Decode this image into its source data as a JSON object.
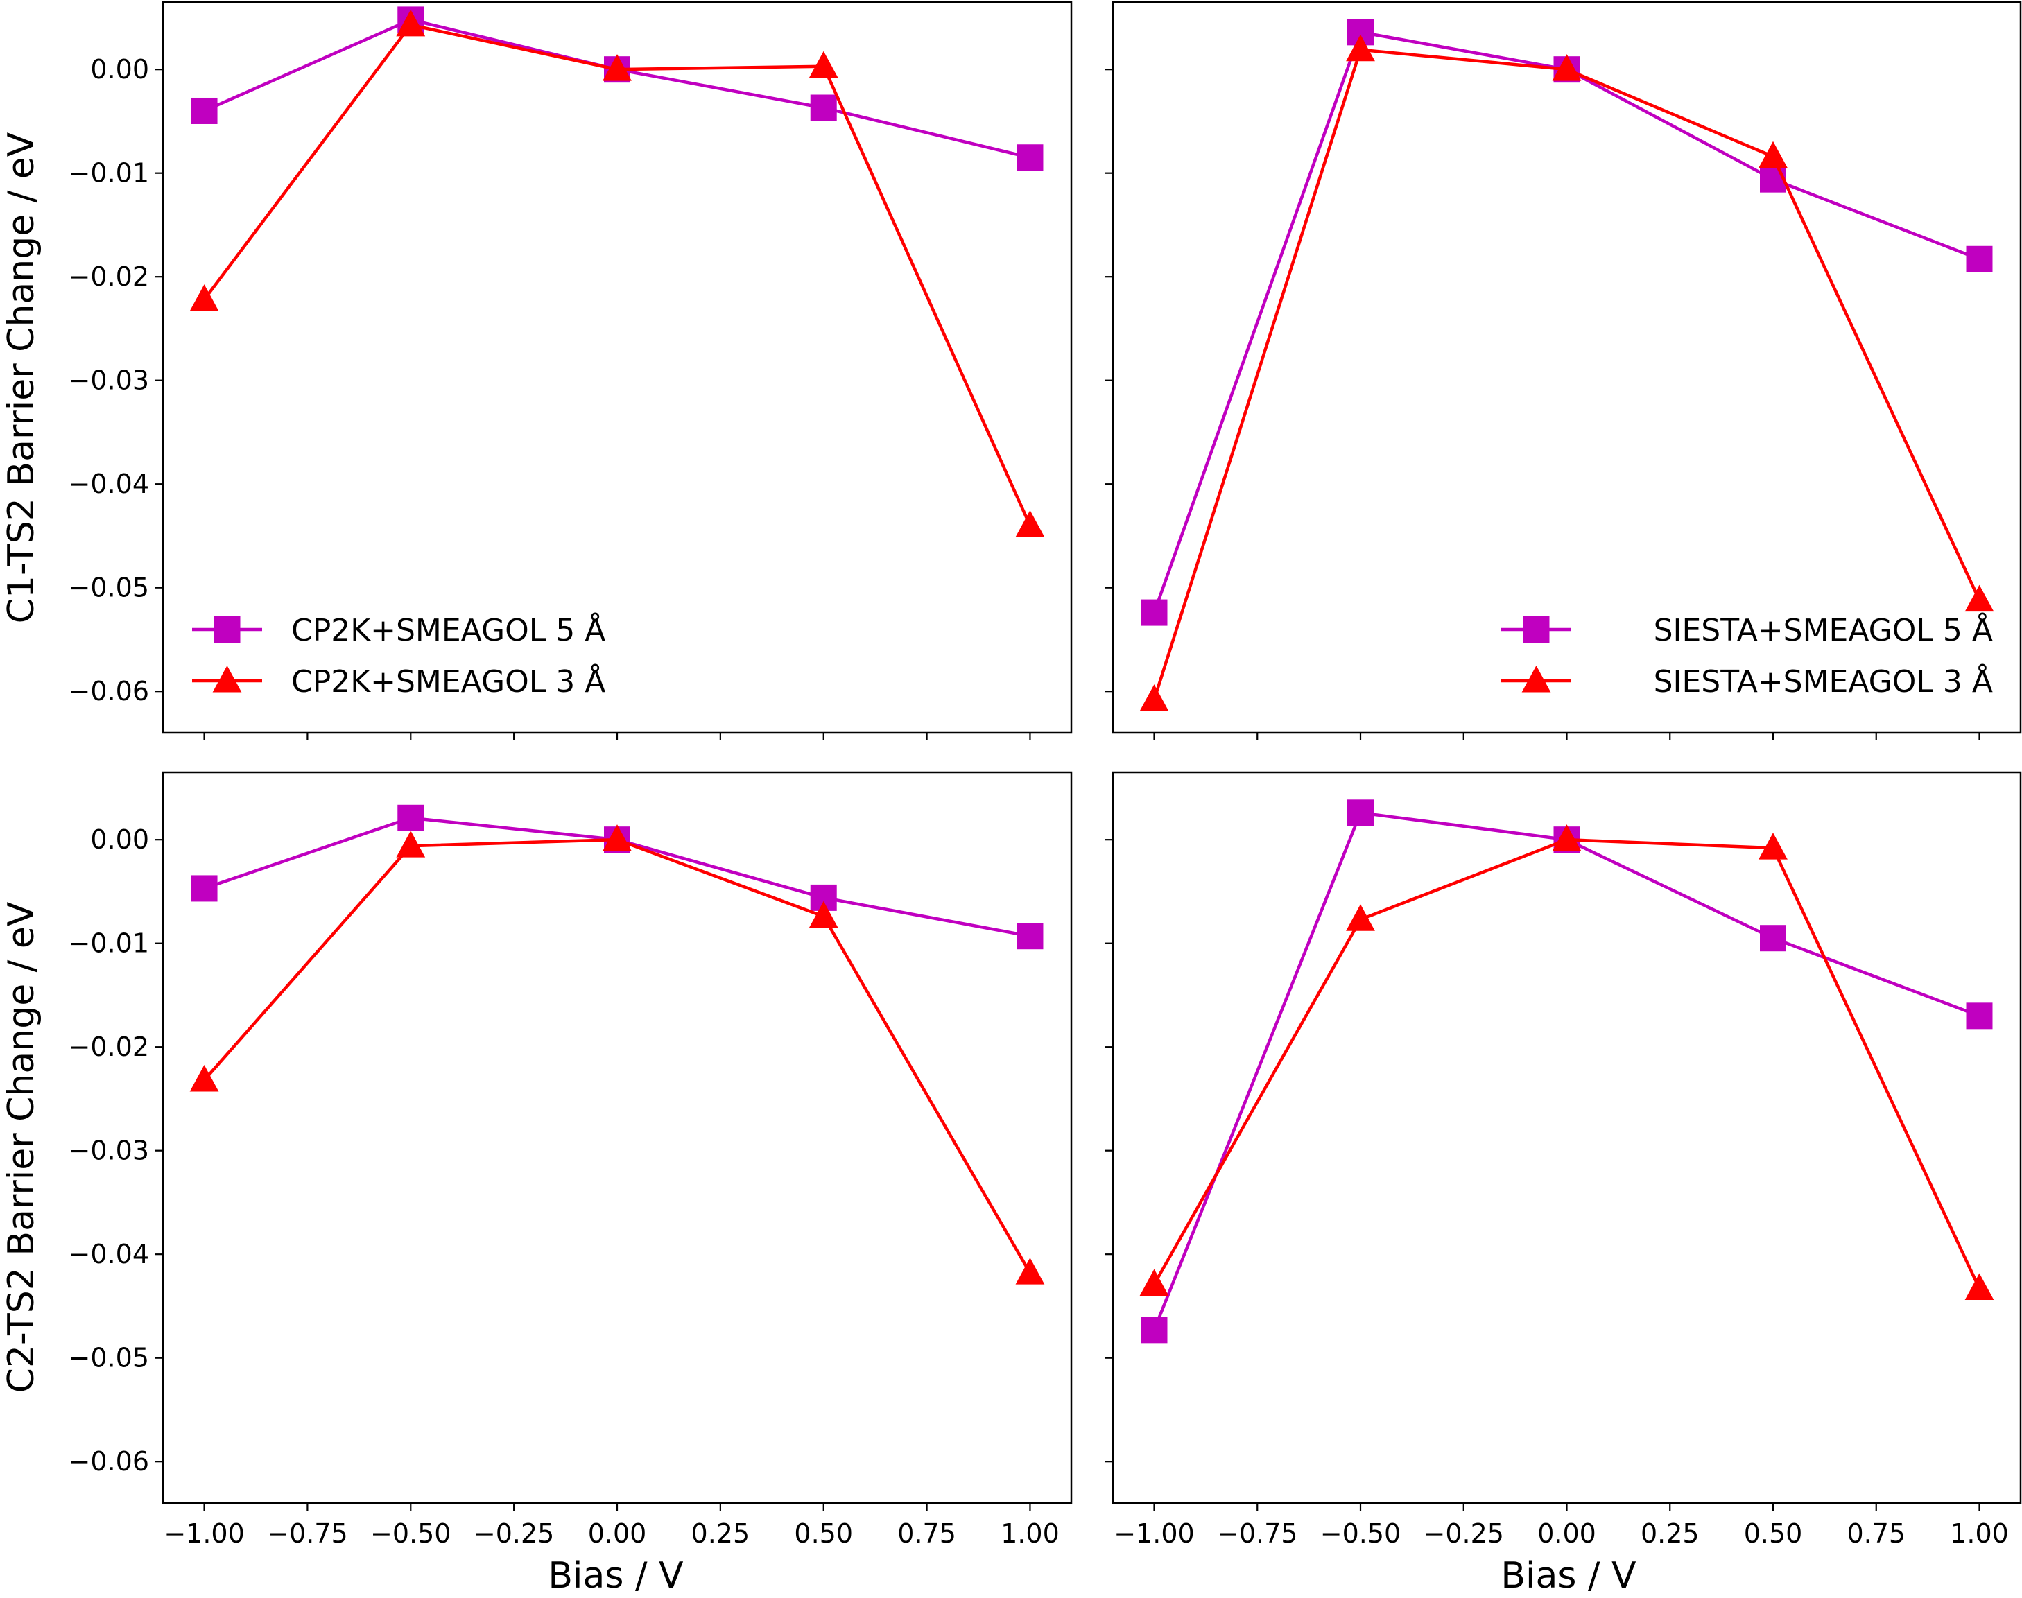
{
  "colors": {
    "magenta": "#c000c0",
    "red": "#ff0000",
    "axis": "#000000",
    "background": "#ffffff"
  },
  "markers": {
    "series_5A": "square",
    "series_3A": "triangle-up"
  },
  "axes": {
    "x_label": "Bias / V",
    "x_ticks": [
      -1.0,
      -0.75,
      -0.5,
      -0.25,
      0.0,
      0.25,
      0.5,
      0.75,
      1.0
    ],
    "x_tick_labels": [
      "−1.00",
      "−0.75",
      "−0.50",
      "−0.25",
      "0.00",
      "0.25",
      "0.50",
      "0.75",
      "1.00"
    ],
    "xlim": [
      -1.1,
      1.1
    ],
    "y_ticks": [
      0.0,
      -0.01,
      -0.02,
      -0.03,
      -0.04,
      -0.05,
      -0.06
    ],
    "y_tick_labels": [
      "0.00",
      "−0.01",
      "−0.02",
      "−0.03",
      "−0.04",
      "−0.05",
      "−0.06"
    ],
    "ylim": [
      -0.064,
      0.0065
    ],
    "row_labels": [
      "C1-TS2 Barrier Change / eV",
      "C2-TS2 Barrier Change / eV"
    ]
  },
  "chart_data": [
    {
      "type": "line",
      "panel": "top-left",
      "ylabel": "C1-TS2 Barrier Change / eV",
      "xlabel": "",
      "legend_position": "lower-left",
      "x": [
        -1.0,
        -0.5,
        0.0,
        0.5,
        1.0
      ],
      "series": [
        {
          "name": "CP2K+SMEAGOL 5 Å",
          "color": "#c000c0",
          "marker": "square",
          "values": [
            -0.004,
            0.0048,
            0.0,
            -0.0037,
            -0.0085
          ]
        },
        {
          "name": "CP2K+SMEAGOL 3 Å",
          "color": "#ff0000",
          "marker": "triangle-up",
          "values": [
            -0.0222,
            0.0043,
            0.0,
            0.0003,
            -0.044
          ]
        }
      ]
    },
    {
      "type": "line",
      "panel": "top-right",
      "ylabel": "",
      "xlabel": "",
      "legend_position": "lower-right",
      "x": [
        -1.0,
        -0.5,
        0.0,
        0.5,
        1.0
      ],
      "series": [
        {
          "name": "SIESTA+SMEAGOL 5 Å",
          "color": "#c000c0",
          "marker": "square",
          "values": [
            -0.0524,
            0.0036,
            0.0,
            -0.0106,
            -0.0183
          ]
        },
        {
          "name": "SIESTA+SMEAGOL 3 Å",
          "color": "#ff0000",
          "marker": "triangle-up",
          "values": [
            -0.0608,
            0.0019,
            0.0,
            -0.0084,
            -0.0512
          ]
        }
      ]
    },
    {
      "type": "line",
      "panel": "bottom-left",
      "ylabel": "C2-TS2 Barrier Change / eV",
      "xlabel": "Bias / V",
      "legend_position": "",
      "x": [
        -1.0,
        -0.5,
        0.0,
        0.5,
        1.0
      ],
      "series": [
        {
          "color": "#c000c0",
          "marker": "square",
          "values": [
            -0.0047,
            0.0021,
            0.0,
            -0.0056,
            -0.0093
          ]
        },
        {
          "color": "#ff0000",
          "marker": "triangle-up",
          "values": [
            -0.0232,
            -0.0006,
            0.0,
            -0.0074,
            -0.0418
          ]
        }
      ]
    },
    {
      "type": "line",
      "panel": "bottom-right",
      "ylabel": "",
      "xlabel": "Bias / V",
      "legend_position": "",
      "x": [
        -1.0,
        -0.5,
        0.0,
        0.5,
        1.0
      ],
      "series": [
        {
          "color": "#c000c0",
          "marker": "square",
          "values": [
            -0.0473,
            0.0026,
            0.0,
            -0.0095,
            -0.017
          ]
        },
        {
          "color": "#ff0000",
          "marker": "triangle-up",
          "values": [
            -0.0429,
            -0.0077,
            0.0,
            -0.0008,
            -0.0433
          ]
        }
      ]
    }
  ]
}
